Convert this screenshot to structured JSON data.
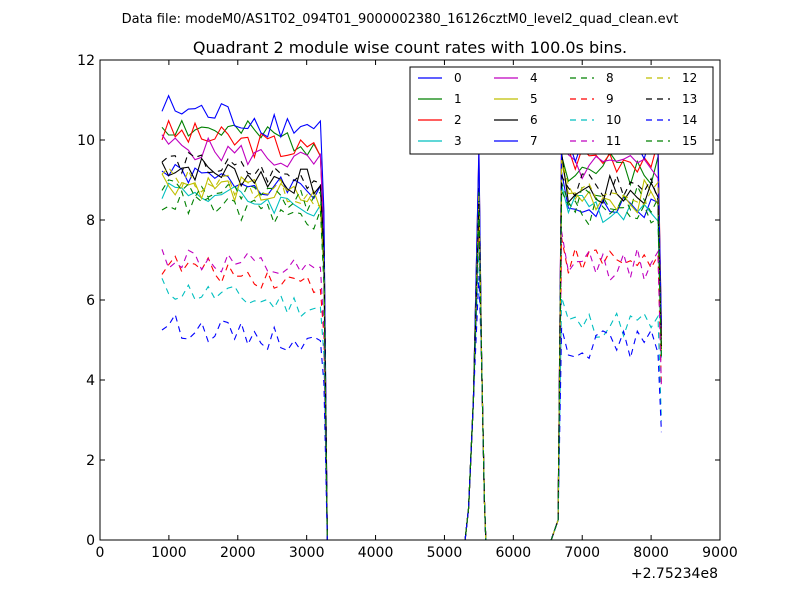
{
  "chart_data": {
    "type": "line",
    "suptitle": "Data file: modeM0/AS1T02_094T01_9000002380_16126cztM0_level2_quad_clean.evt",
    "title": "Quadrant 2 module wise count rates with 100.0s bins.",
    "xlabel": "",
    "ylabel": "",
    "x_offset_label": "+2.75234e8",
    "xlim": [
      0,
      9000
    ],
    "ylim": [
      0,
      12
    ],
    "xticks": [
      "0",
      "1000",
      "2000",
      "3000",
      "4000",
      "5000",
      "6000",
      "7000",
      "8000",
      "9000"
    ],
    "yticks": [
      "0",
      "2",
      "4",
      "6",
      "8",
      "10",
      "12"
    ],
    "grid": false,
    "legend_position": "top-right",
    "segments": [
      [
        900,
        3200
      ],
      [
        6700,
        8100
      ]
    ],
    "segment1_steps": 24,
    "segment2_steps": 14,
    "series": [
      {
        "name": "0",
        "color": "#0000ff",
        "dash": "solid",
        "base": 8.7,
        "amp": 0.25,
        "seed": 1,
        "late": 8.3,
        "spike": 9.2
      },
      {
        "name": "1",
        "color": "#008000",
        "dash": "solid",
        "base": 9.9,
        "amp": 0.35,
        "seed": 2,
        "late": 9.3,
        "spike": 9.3
      },
      {
        "name": "2",
        "color": "#ff0000",
        "dash": "solid",
        "base": 9.7,
        "amp": 0.35,
        "seed": 3,
        "late": 9.6,
        "spike": 9.7
      },
      {
        "name": "3",
        "color": "#00bfbf",
        "dash": "solid",
        "base": 8.3,
        "amp": 0.3,
        "seed": 4,
        "late": 8.3,
        "spike": 9.5
      },
      {
        "name": "4",
        "color": "#bf00bf",
        "dash": "solid",
        "base": 9.4,
        "amp": 0.3,
        "seed": 5,
        "late": 9.3,
        "spike": 9.4
      },
      {
        "name": "5",
        "color": "#bfbf00",
        "dash": "solid",
        "base": 8.5,
        "amp": 0.35,
        "seed": 6,
        "late": 8.6,
        "spike": 9.0
      },
      {
        "name": "6",
        "color": "#000000",
        "dash": "solid",
        "base": 8.9,
        "amp": 0.35,
        "seed": 7,
        "late": 8.7,
        "spike": 8.8
      },
      {
        "name": "7",
        "color": "#0000ff",
        "dash": "solid",
        "base": 10.3,
        "amp": 0.4,
        "seed": 8,
        "late": 9.7,
        "spike": 9.8
      },
      {
        "name": "8",
        "color": "#008000",
        "dash": "dashed",
        "base": 8.4,
        "amp": 0.3,
        "seed": 9,
        "late": 8.5,
        "spike": 8.7
      },
      {
        "name": "9",
        "color": "#ff0000",
        "dash": "dashed",
        "base": 6.4,
        "amp": 0.3,
        "seed": 10,
        "late": 7.0,
        "spike": 8.0
      },
      {
        "name": "10",
        "color": "#00bfbf",
        "dash": "dashed",
        "base": 5.8,
        "amp": 0.3,
        "seed": 11,
        "late": 5.4,
        "spike": 7.4
      },
      {
        "name": "11",
        "color": "#bf00bf",
        "dash": "dashed",
        "base": 6.6,
        "amp": 0.35,
        "seed": 12,
        "late": 6.9,
        "spike": 7.9
      },
      {
        "name": "12",
        "color": "#bfbf00",
        "dash": "dashed",
        "base": 8.6,
        "amp": 0.3,
        "seed": 13,
        "late": 8.6,
        "spike": 8.6
      },
      {
        "name": "13",
        "color": "#000000",
        "dash": "dashed",
        "base": 9.0,
        "amp": 0.3,
        "seed": 14,
        "late": 8.8,
        "spike": 8.4
      },
      {
        "name": "14",
        "color": "#0000ff",
        "dash": "dashed",
        "base": 4.9,
        "amp": 0.3,
        "seed": 15,
        "late": 4.9,
        "spike": 6.6
      },
      {
        "name": "15",
        "color": "#008000",
        "dash": "dashed",
        "base": 8.0,
        "amp": 0.3,
        "seed": 16,
        "late": 8.2,
        "spike": 8.2
      }
    ]
  }
}
